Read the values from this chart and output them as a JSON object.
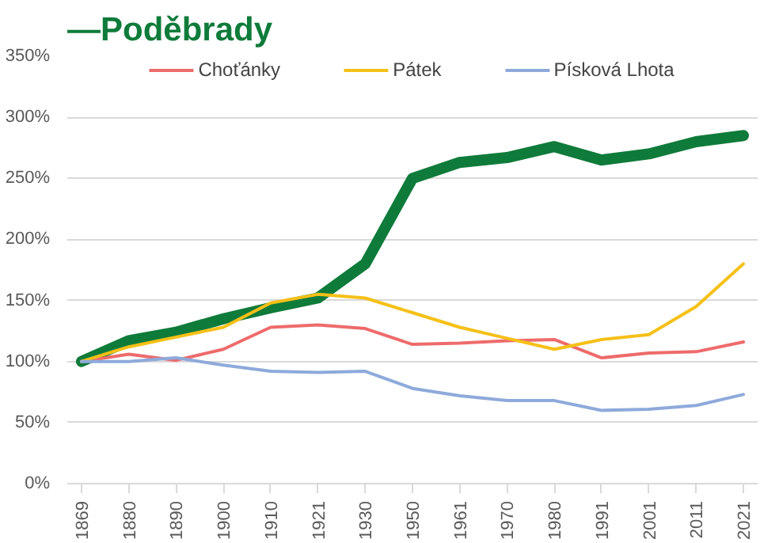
{
  "chart_data": {
    "type": "line",
    "title": "—Poděbrady",
    "categories": [
      "1869",
      "1880",
      "1890",
      "1900",
      "1910",
      "1921",
      "1930",
      "1950",
      "1961",
      "1970",
      "1980",
      "1991",
      "2001",
      "2011",
      "2021"
    ],
    "series": [
      {
        "color": "#0f7b3a",
        "values": [
          100,
          117,
          124,
          135,
          144,
          152,
          180,
          250,
          263,
          267,
          276,
          265,
          270,
          280,
          285
        ]
      },
      {
        "name": "Choťánky",
        "color": "#ee6b6b",
        "values": [
          100,
          106,
          101,
          110,
          128,
          130,
          127,
          114,
          115,
          117,
          118,
          103,
          107,
          108,
          116
        ]
      },
      {
        "name": "Pátek",
        "color": "#f5c018",
        "values": [
          100,
          112,
          120,
          128,
          148,
          155,
          152,
          140,
          128,
          119,
          110,
          118,
          122,
          145,
          180
        ]
      },
      {
        "name": "Písková Lhota",
        "color": "#8eaadb",
        "values": [
          100,
          100,
          103,
          97,
          92,
          91,
          92,
          78,
          72,
          68,
          68,
          60,
          61,
          64,
          73
        ]
      }
    ],
    "ylim": [
      0,
      350
    ],
    "yticks": [
      {
        "value": 0,
        "label": "0%"
      },
      {
        "value": 50,
        "label": "50%"
      },
      {
        "value": 100,
        "label": "100%"
      },
      {
        "value": 150,
        "label": "150%"
      },
      {
        "value": 200,
        "label": "200%"
      },
      {
        "value": 250,
        "label": "250%"
      },
      {
        "value": 300,
        "label": "300%"
      },
      {
        "value": 350,
        "label": "350%"
      }
    ],
    "grid": "y",
    "legend": "top",
    "line_style": "solid",
    "marker": "none"
  }
}
